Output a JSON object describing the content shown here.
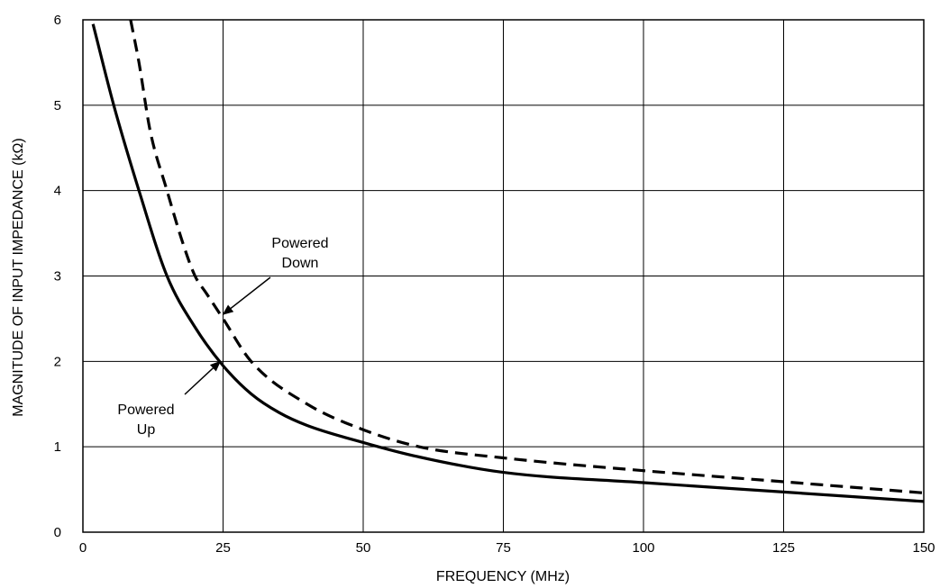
{
  "chart_data": {
    "type": "line",
    "title": "",
    "xlabel": "FREQUENCY (MHz)",
    "ylabel": "MAGNITUDE OF INPUT IMPEDANCE (kΩ)",
    "xlim": [
      0,
      150
    ],
    "ylim": [
      0,
      6
    ],
    "xticks": [
      0,
      25,
      50,
      75,
      100,
      125,
      150
    ],
    "yticks": [
      0,
      1,
      2,
      3,
      4,
      5,
      6
    ],
    "grid": true,
    "series": [
      {
        "name": "Powered Up",
        "style": "solid",
        "points": [
          [
            1.8,
            5.95
          ],
          [
            5.5,
            5.0
          ],
          [
            10,
            4.0
          ],
          [
            15,
            3.0
          ],
          [
            20,
            2.4
          ],
          [
            25,
            1.95
          ],
          [
            30,
            1.62
          ],
          [
            35,
            1.4
          ],
          [
            40,
            1.25
          ],
          [
            50,
            1.05
          ],
          [
            60,
            0.88
          ],
          [
            75,
            0.7
          ],
          [
            100,
            0.58
          ],
          [
            125,
            0.47
          ],
          [
            150,
            0.36
          ]
        ]
      },
      {
        "name": "Powered Down",
        "style": "dashed",
        "points": [
          [
            8.5,
            6.0
          ],
          [
            10,
            5.5
          ],
          [
            12,
            4.7
          ],
          [
            15,
            4.0
          ],
          [
            18,
            3.35
          ],
          [
            20,
            3.0
          ],
          [
            22,
            2.8
          ],
          [
            25,
            2.5
          ],
          [
            30,
            2.0
          ],
          [
            40,
            1.5
          ],
          [
            50,
            1.2
          ],
          [
            60,
            1.0
          ],
          [
            75,
            0.87
          ],
          [
            100,
            0.72
          ],
          [
            125,
            0.59
          ],
          [
            150,
            0.46
          ]
        ]
      }
    ],
    "annotations": [
      {
        "text": [
          "Powered",
          "Down"
        ],
        "target": [
          25,
          2.55
        ]
      },
      {
        "text": [
          "Powered",
          "Up"
        ],
        "target": [
          24.5,
          2.0
        ]
      }
    ],
    "colors": {
      "line": "#000000",
      "grid": "#000000",
      "background": "#ffffff"
    }
  }
}
